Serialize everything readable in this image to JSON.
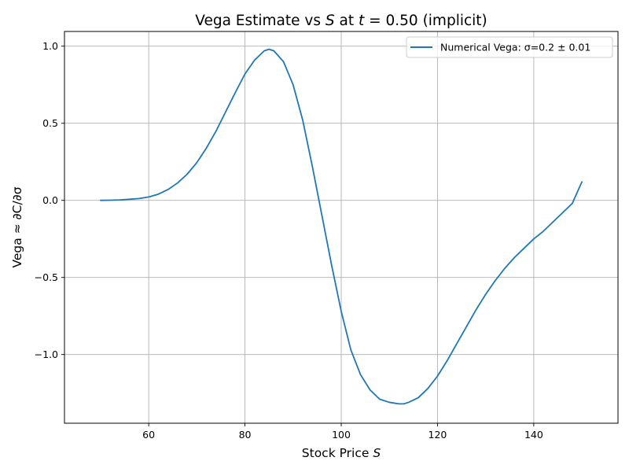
{
  "chart_data": {
    "type": "line",
    "title": "Vega Estimate vs S at t = 0.50 (implicit)",
    "title_parts": {
      "prefix": "Vega Estimate vs ",
      "s_symbol": "S",
      "at": " at ",
      "t_symbol": "t",
      "equals": " = 0.50 (implicit)"
    },
    "xlabel": "Stock Price S",
    "xlabel_parts": {
      "text": "Stock Price ",
      "symbol": "S"
    },
    "ylabel": "Vega ≈ ∂C/∂σ",
    "xlim": [
      42.5,
      157.5
    ],
    "ylim": [
      -1.4455,
      1.0955
    ],
    "xticks": [
      60,
      80,
      100,
      120,
      140
    ],
    "xtick_labels": [
      "60",
      "80",
      "100",
      "120",
      "140"
    ],
    "yticks": [
      1.0,
      0.5,
      0.0,
      -0.5,
      -1.0
    ],
    "ytick_labels": [
      "1.0",
      "0.5",
      "0.0",
      "−0.5",
      "−1.0"
    ],
    "grid": true,
    "legend_position": "top-right",
    "series": [
      {
        "name": "Numerical Vega: σ=0.2 ± 0.01",
        "color": "#1f77b4",
        "x": [
          50,
          52,
          54,
          56,
          58,
          60,
          62,
          64,
          66,
          68,
          70,
          72,
          74,
          76,
          78,
          80,
          82,
          84,
          85,
          86,
          88,
          90,
          92,
          94,
          96,
          98,
          100,
          102,
          104,
          106,
          108,
          110,
          112,
          113,
          114,
          116,
          118,
          120,
          122,
          124,
          126,
          128,
          130,
          132,
          134,
          136,
          138,
          140,
          142,
          144,
          146,
          148,
          150
        ],
        "y": [
          0.0,
          0.001,
          0.003,
          0.007,
          0.012,
          0.022,
          0.04,
          0.07,
          0.113,
          0.17,
          0.245,
          0.34,
          0.45,
          0.575,
          0.7,
          0.82,
          0.91,
          0.97,
          0.98,
          0.97,
          0.9,
          0.75,
          0.52,
          0.22,
          -0.1,
          -0.42,
          -0.72,
          -0.97,
          -1.13,
          -1.23,
          -1.29,
          -1.31,
          -1.32,
          -1.32,
          -1.31,
          -1.28,
          -1.22,
          -1.14,
          -1.04,
          -0.93,
          -0.82,
          -0.71,
          -0.61,
          -0.52,
          -0.44,
          -0.37,
          -0.31,
          -0.25,
          -0.2,
          -0.14,
          -0.08,
          -0.02,
          0.12
        ]
      }
    ]
  }
}
